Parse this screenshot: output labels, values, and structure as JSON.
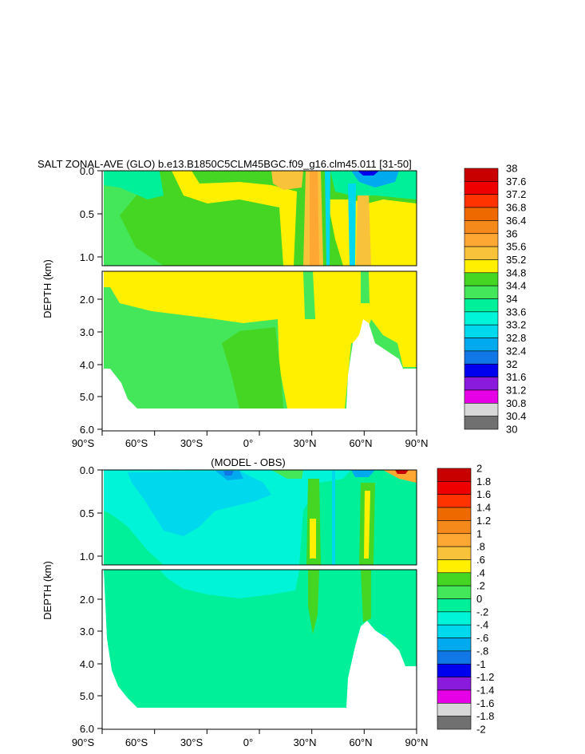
{
  "chart_data": [
    {
      "type": "heatmap",
      "title": "SALT ZONAL-AVE (GLO) b.e13.B1850C5CLM45BGC.f09_g16.clm45.011 [31-50]",
      "ylabel": "DEPTH (km)",
      "xlabel": "",
      "x_range": [
        -90,
        90
      ],
      "x_ticks": [
        -90,
        -60,
        -30,
        0,
        30,
        60,
        90
      ],
      "x_tick_labels": [
        "90°S",
        "60°S",
        "30°S",
        "0°",
        "30°N",
        "60°N",
        "90°N"
      ],
      "upper_panel": {
        "depth_range": [
          0.0,
          1.15
        ],
        "ticks": [
          0.0,
          0.5,
          1.0
        ],
        "tick_labels": [
          "0.0",
          "0.5",
          "1.0"
        ]
      },
      "lower_panel": {
        "depth_range": [
          1.15,
          6.0
        ],
        "ticks": [
          2.0,
          3.0,
          4.0,
          5.0,
          6.0
        ],
        "tick_labels": [
          "2.0",
          "3.0",
          "4.0",
          "5.0",
          "6.0"
        ]
      },
      "colorbar": {
        "labels": [
          "38",
          "37.6",
          "37.2",
          "36.8",
          "36.4",
          "36",
          "35.6",
          "35.2",
          "34.8",
          "34.4",
          "34",
          "33.6",
          "33.2",
          "32.8",
          "32.4",
          "32",
          "31.6",
          "31.2",
          "30.8",
          "30.4",
          "30"
        ],
        "colors": [
          "#c80000",
          "#ee0000",
          "#ff3300",
          "#ee6a00",
          "#f58a1a",
          "#ffa733",
          "#f8c23a",
          "#fff000",
          "#44d622",
          "#44e65a",
          "#00f09a",
          "#00f5d8",
          "#00d8ee",
          "#00aaee",
          "#1177e6",
          "#0000ee",
          "#8a1adc",
          "#e600e6",
          "#d8d8d8",
          "#707070"
        ]
      }
    },
    {
      "type": "heatmap",
      "title": "(MODEL - OBS)",
      "ylabel": "DEPTH (km)",
      "xlabel": "",
      "x_range": [
        -90,
        90
      ],
      "x_ticks": [
        -90,
        -60,
        -30,
        0,
        30,
        60,
        90
      ],
      "x_tick_labels": [
        "90°S",
        "60°S",
        "30°S",
        "0°",
        "30°N",
        "60°N",
        "90°N"
      ],
      "upper_panel": {
        "depth_range": [
          0.0,
          1.15
        ],
        "ticks": [
          0.0,
          0.5,
          1.0
        ],
        "tick_labels": [
          "0.0",
          "0.5",
          "1.0"
        ]
      },
      "lower_panel": {
        "depth_range": [
          1.15,
          6.0
        ],
        "ticks": [
          2.0,
          3.0,
          4.0,
          5.0,
          6.0
        ],
        "tick_labels": [
          "2.0",
          "3.0",
          "4.0",
          "5.0",
          "6.0"
        ]
      },
      "colorbar": {
        "labels": [
          "2",
          "1.8",
          "1.6",
          "1.4",
          "1.2",
          "1",
          ".8",
          ".6",
          ".4",
          ".2",
          "0",
          "-.2",
          "-.4",
          "-.6",
          "-.8",
          "-1",
          "-1.2",
          "-1.4",
          "-1.6",
          "-1.8",
          "-2"
        ],
        "colors": [
          "#c80000",
          "#ee0000",
          "#ff3300",
          "#ee6a00",
          "#f58a1a",
          "#ffa733",
          "#f8c23a",
          "#fff000",
          "#44d622",
          "#44e65a",
          "#00f09a",
          "#00f5d8",
          "#00d8ee",
          "#00aaee",
          "#1177e6",
          "#0000ee",
          "#8a1adc",
          "#e600e6",
          "#d8d8d8",
          "#707070"
        ]
      }
    }
  ]
}
